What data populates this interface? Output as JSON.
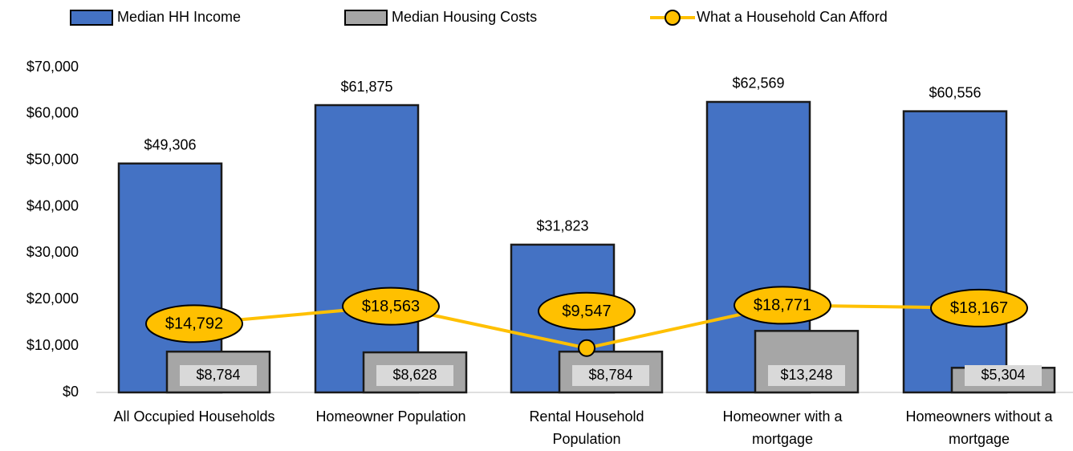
{
  "chart_data": {
    "type": "bar",
    "categories": [
      [
        "All Occupied Households"
      ],
      [
        "Homeowner Population"
      ],
      [
        "Rental Household",
        "Population"
      ],
      [
        "Homeowner with a",
        "mortgage"
      ],
      [
        "Homeowners without a",
        "mortgage"
      ]
    ],
    "series": [
      {
        "name": "Median HH Income",
        "type": "bar",
        "color": "#4472c4",
        "values": [
          49306,
          61875,
          31823,
          62569,
          60556
        ],
        "value_labels": [
          "$49,306",
          "$61,875",
          "$31,823",
          "$62,569",
          "$60,556"
        ]
      },
      {
        "name": "Median Housing Costs",
        "type": "bar",
        "color": "#a6a6a6",
        "values": [
          8784,
          8628,
          8784,
          13248,
          5304
        ],
        "value_labels": [
          "$8,784",
          "$8,628",
          "$8,784",
          "$13,248",
          "$5,304"
        ]
      },
      {
        "name": "What a Household Can Afford",
        "type": "line",
        "color": "#ffc000",
        "values": [
          14792,
          18563,
          9547,
          18771,
          18167
        ],
        "value_labels": [
          "$14,792",
          "$18,563",
          "$9,547",
          "$18,771",
          "$18,167"
        ]
      }
    ],
    "ylim": [
      0,
      70000
    ],
    "yticks": [
      {
        "value": 0,
        "label": "$0"
      },
      {
        "value": 10000,
        "label": "$10,000"
      },
      {
        "value": 20000,
        "label": "$20,000"
      },
      {
        "value": 30000,
        "label": "$30,000"
      },
      {
        "value": 40000,
        "label": "$40,000"
      },
      {
        "value": 50000,
        "label": "$50,000"
      },
      {
        "value": 60000,
        "label": "$60,000"
      },
      {
        "value": 70000,
        "label": "$70,000"
      }
    ],
    "legend": "top"
  }
}
